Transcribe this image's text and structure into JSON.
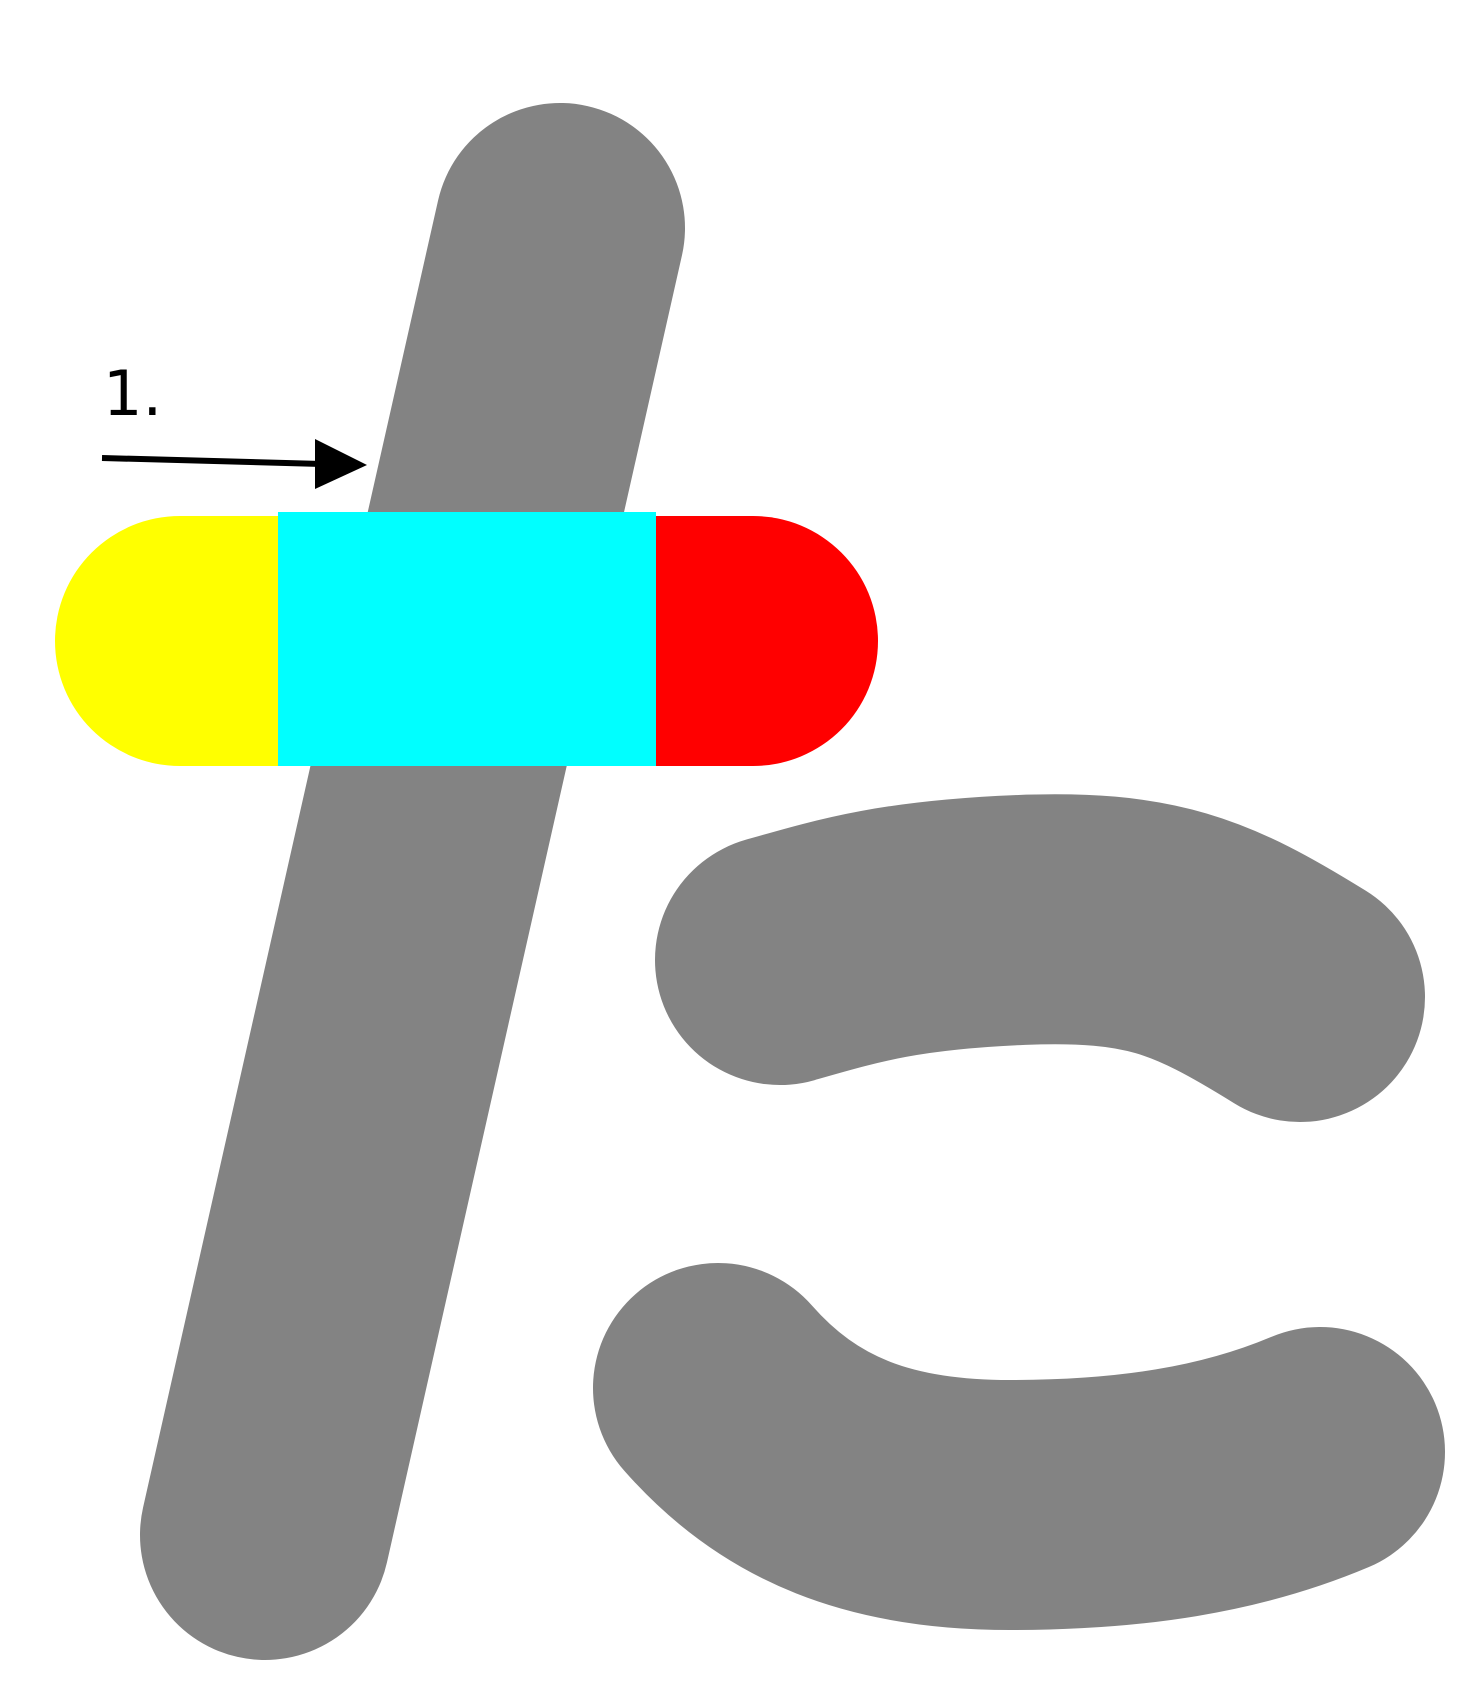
{
  "character": {
    "glyph": "た",
    "colors": {
      "background": "#ffffff",
      "stroke_gray": "#838383",
      "segment_start": "#ffff00",
      "segment_middle": "#00ffff",
      "segment_end": "#ff0000",
      "annotation": "#000000"
    }
  },
  "annotation": {
    "step_label": "1."
  }
}
